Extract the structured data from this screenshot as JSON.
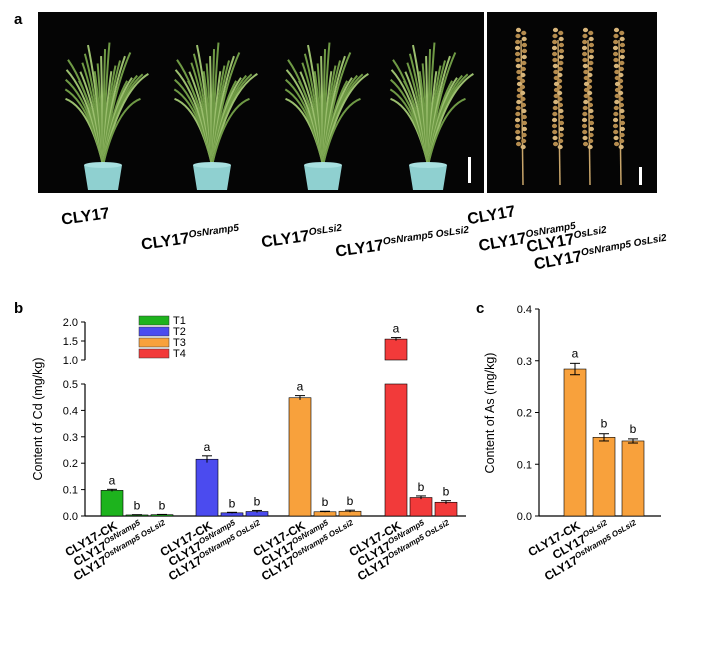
{
  "panels": {
    "a": "a",
    "b": "b",
    "c": "c"
  },
  "photo": {
    "plant_labels": [
      {
        "base": "CLY17",
        "sup": ""
      },
      {
        "base": "CLY17",
        "sup": "OsNramp5"
      },
      {
        "base": "CLY17",
        "sup": "OsLsi2"
      },
      {
        "base": "CLY17",
        "sup": "OsNramp5 OsLsi2"
      }
    ],
    "panicle_labels": [
      {
        "base": "CLY17",
        "sup": ""
      },
      {
        "base": "CLY17",
        "sup": "OsNramp5"
      },
      {
        "base": "CLY17",
        "sup": "OsLsi2"
      },
      {
        "base": "CLY17",
        "sup": "OsNramp5 OsLsi2"
      }
    ]
  },
  "chart_data": [
    {
      "type": "bar",
      "panel": "b",
      "ylabel": "Content of Cd (mg/kg)",
      "y_lower_ticks": [
        "0.0",
        "0.1",
        "0.2",
        "0.3",
        "0.4",
        "0.5"
      ],
      "y_upper_ticks": [
        "1.0",
        "1.5",
        "2.0"
      ],
      "ylim_lower": [
        0,
        0.5
      ],
      "ylim_upper": [
        1.0,
        2.0
      ],
      "axis_break": [
        0.5,
        1.0
      ],
      "legend": [
        "T1",
        "T2",
        "T3",
        "T4"
      ],
      "groups": [
        {
          "name": "T1",
          "color": "#1db31d",
          "categories": [
            {
              "base": "CLY17-CK",
              "sup": ""
            },
            {
              "base": "CLY17",
              "sup": "OsNramp5"
            },
            {
              "base": "CLY17",
              "sup": "OsNramp5 OsLsi2"
            }
          ],
          "values": [
            0.097,
            0.004,
            0.005
          ],
          "errors": [
            0.004,
            0.001,
            0.001
          ],
          "letters": [
            "a",
            "b",
            "b"
          ]
        },
        {
          "name": "T2",
          "color": "#4b4bef",
          "categories": [
            {
              "base": "CLY17-CK",
              "sup": ""
            },
            {
              "base": "CLY17",
              "sup": "OsNramp5"
            },
            {
              "base": "CLY17",
              "sup": "OsNramp5 OsLsi2"
            }
          ],
          "values": [
            0.215,
            0.012,
            0.017
          ],
          "errors": [
            0.013,
            0.002,
            0.004
          ],
          "letters": [
            "a",
            "b",
            "b"
          ]
        },
        {
          "name": "T3",
          "color": "#f8a13c",
          "categories": [
            {
              "base": "CLY17-CK",
              "sup": ""
            },
            {
              "base": "CLY17",
              "sup": "OsNramp5"
            },
            {
              "base": "CLY17",
              "sup": "OsNramp5 OsLsi2"
            }
          ],
          "values": [
            0.448,
            0.016,
            0.018
          ],
          "errors": [
            0.008,
            0.002,
            0.004
          ],
          "letters": [
            "a",
            "b",
            "b"
          ]
        },
        {
          "name": "T4",
          "color": "#f23a3a",
          "categories": [
            {
              "base": "CLY17-CK",
              "sup": ""
            },
            {
              "base": "CLY17",
              "sup": "OsNramp5"
            },
            {
              "base": "CLY17",
              "sup": "OsNramp5 OsLsi2"
            }
          ],
          "values": [
            1.55,
            0.07,
            0.052
          ],
          "errors": [
            0.04,
            0.006,
            0.006
          ],
          "letters": [
            "a",
            "b",
            "b"
          ]
        }
      ]
    },
    {
      "type": "bar",
      "panel": "c",
      "ylabel": "Content of As (mg/kg)",
      "y_ticks": [
        "0.0",
        "0.1",
        "0.2",
        "0.3",
        "0.4"
      ],
      "ylim": [
        0,
        0.4
      ],
      "color": "#f8a13c",
      "categories": [
        {
          "base": "CLY17-CK",
          "sup": ""
        },
        {
          "base": "CLY17",
          "sup": "OsLsi2"
        },
        {
          "base": "CLY17",
          "sup": "OsNramp5 OsLsi2"
        }
      ],
      "values": [
        0.284,
        0.152,
        0.145
      ],
      "errors": [
        0.011,
        0.007,
        0.004
      ],
      "letters": [
        "a",
        "b",
        "b"
      ]
    }
  ]
}
